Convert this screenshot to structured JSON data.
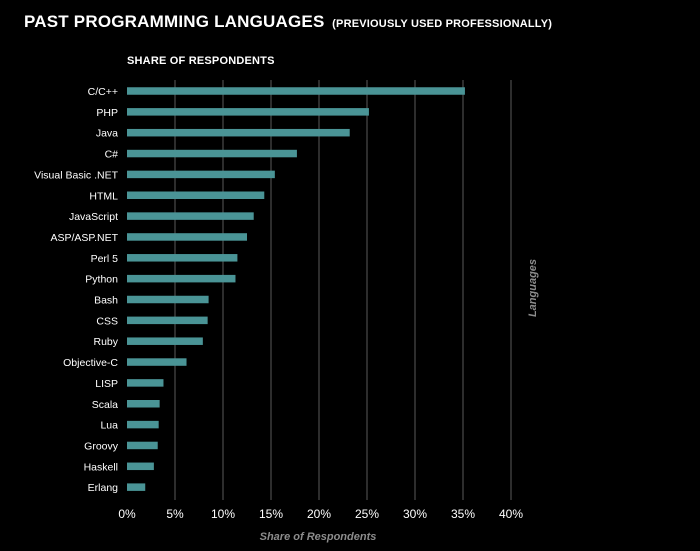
{
  "chart_data": {
    "type": "bar",
    "orientation": "horizontal",
    "title": "PAST PROGRAMMING LANGUAGES",
    "title_suffix": "(PREVIOUSLY USED PROFESSIONALLY)",
    "subtitle": "SHARE OF RESPONDENTS",
    "xlabel": "Share of Respondents",
    "ylabel": "Languages",
    "categories": [
      "C/C++",
      "PHP",
      "Java",
      "C#",
      "Visual Basic .NET",
      "HTML",
      "JavaScript",
      "ASP/ASP.NET",
      "Perl 5",
      "Python",
      "Bash",
      "CSS",
      "Ruby",
      "Objective-C",
      "LISP",
      "Scala",
      "Lua",
      "Groovy",
      "Haskell",
      "Erlang"
    ],
    "values": [
      35.2,
      25.2,
      23.2,
      17.7,
      15.4,
      14.3,
      13.2,
      12.5,
      11.5,
      11.3,
      8.5,
      8.4,
      7.9,
      6.2,
      3.8,
      3.4,
      3.3,
      3.2,
      2.8,
      1.9
    ],
    "xlim": [
      0,
      40
    ],
    "xticks": [
      "0%",
      "5%",
      "10%",
      "15%",
      "20%",
      "25%",
      "30%",
      "35%",
      "40%"
    ],
    "grid": true,
    "bar_color": "#4a9496",
    "grid_color": "#5a5a5a",
    "background": "#000000"
  }
}
